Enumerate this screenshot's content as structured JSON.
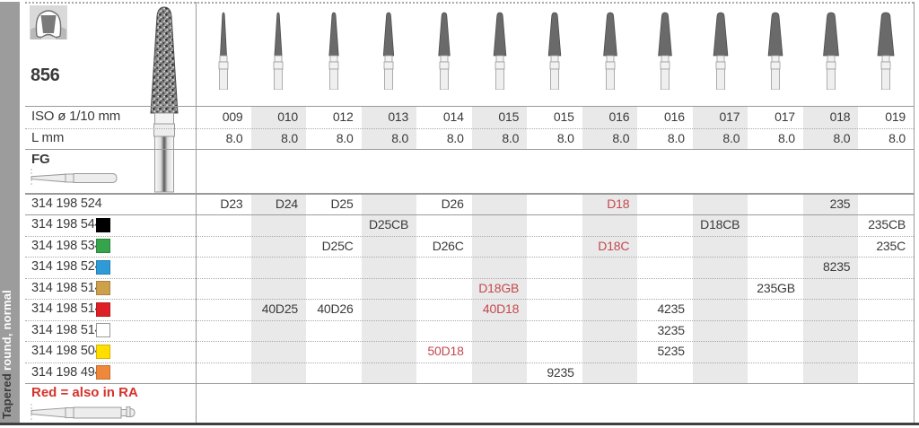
{
  "sidebar": {
    "label_bold": "Tapered",
    "label_light": "round, normal"
  },
  "product": {
    "figure": "856"
  },
  "labels": {
    "iso": "ISO ø 1/10 mm",
    "l": "L mm",
    "shank": "FG"
  },
  "legend": {
    "text": "Red = also in RA"
  },
  "colors": {
    "stripe": "#e9e9e9",
    "red_text": "#c4494f",
    "legend_red": "#d6322d",
    "text": "#3a3a3a"
  },
  "columns": [
    {
      "iso": "009",
      "l": "8.0"
    },
    {
      "iso": "010",
      "l": "8.0"
    },
    {
      "iso": "012",
      "l": "8.0"
    },
    {
      "iso": "013",
      "l": "8.0"
    },
    {
      "iso": "014",
      "l": "8.0"
    },
    {
      "iso": "015",
      "l": "8.0"
    },
    {
      "iso": "015",
      "l": "8.0"
    },
    {
      "iso": "016",
      "l": "8.0"
    },
    {
      "iso": "016",
      "l": "8.0"
    },
    {
      "iso": "017",
      "l": "8.0"
    },
    {
      "iso": "017",
      "l": "8.0"
    },
    {
      "iso": "018",
      "l": "8.0"
    },
    {
      "iso": "019",
      "l": "8.0"
    }
  ],
  "rows": [
    {
      "code": "314 198 524",
      "ring": null,
      "ring_name": null,
      "cells": [
        {
          "col": 1,
          "text": "D23"
        },
        {
          "col": 2,
          "text": "D24"
        },
        {
          "col": 3,
          "text": "D25"
        },
        {
          "col": 5,
          "text": "D26"
        },
        {
          "col": 8,
          "text": "D18",
          "red": true
        },
        {
          "col": 12,
          "text": "235"
        }
      ]
    },
    {
      "code": "314 198 544",
      "ring": "#000000",
      "ring_name": "black",
      "cells": [
        {
          "col": 4,
          "text": "D25CB"
        },
        {
          "col": 10,
          "text": "D18CB"
        },
        {
          "col": 13,
          "text": "235CB"
        }
      ]
    },
    {
      "code": "314 198 534",
      "ring": "#35a44a",
      "ring_name": "green",
      "cells": [
        {
          "col": 3,
          "text": "D25C"
        },
        {
          "col": 5,
          "text": "D26C"
        },
        {
          "col": 8,
          "text": "D18C",
          "red": true
        },
        {
          "col": 13,
          "text": "235C"
        }
      ]
    },
    {
      "code": "314 198 524",
      "ring": "#2e9bd8",
      "ring_name": "blue",
      "cells": [
        {
          "col": 12,
          "text": "8235"
        }
      ]
    },
    {
      "code": "314 198 514",
      "ring": "#cda04c",
      "ring_name": "gold",
      "cells": [
        {
          "col": 6,
          "text": "D18GB",
          "red": true
        },
        {
          "col": 11,
          "text": "235GB"
        }
      ]
    },
    {
      "code": "314 198 514",
      "ring": "#de1f26",
      "ring_name": "red",
      "cells": [
        {
          "col": 2,
          "text": "40D25"
        },
        {
          "col": 3,
          "text": "40D26"
        },
        {
          "col": 6,
          "text": "40D18",
          "red": true
        },
        {
          "col": 9,
          "text": "4235"
        }
      ]
    },
    {
      "code": "314 198 514",
      "ring": "#ffffff",
      "ring_name": "white",
      "cells": [
        {
          "col": 9,
          "text": "3235"
        }
      ]
    },
    {
      "code": "314 198 504",
      "ring": "#ffde00",
      "ring_name": "yellow",
      "cells": [
        {
          "col": 5,
          "text": "50D18",
          "red": true
        },
        {
          "col": 9,
          "text": "5235"
        }
      ]
    },
    {
      "code": "314 198 494",
      "ring": "#f0883c",
      "ring_name": "orange",
      "cells": [
        {
          "col": 7,
          "text": "9235"
        }
      ]
    }
  ]
}
